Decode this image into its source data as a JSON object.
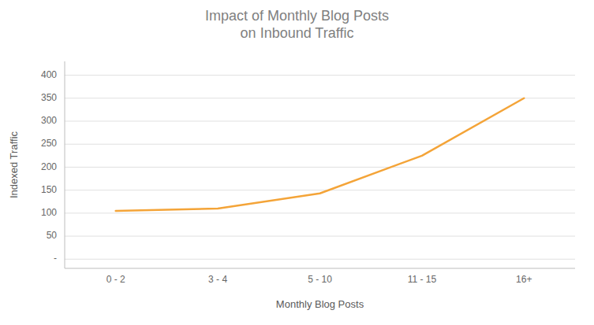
{
  "chart_data": {
    "type": "line",
    "title": "Impact of Monthly Blog Posts\non Inbound Traffic",
    "xlabel": "Monthly Blog Posts",
    "ylabel": "Indexed Traffic",
    "categories": [
      "0 - 2",
      "3 - 4",
      "5 - 10",
      "11 - 15",
      "16+"
    ],
    "values": [
      105,
      110,
      143,
      225,
      350
    ],
    "color": "#F4A438",
    "ylim": [
      -20,
      430
    ],
    "yticks": [
      {
        "value": 0,
        "label": "-"
      },
      50,
      100,
      150,
      200,
      250,
      300,
      350,
      400
    ],
    "grid": true
  }
}
